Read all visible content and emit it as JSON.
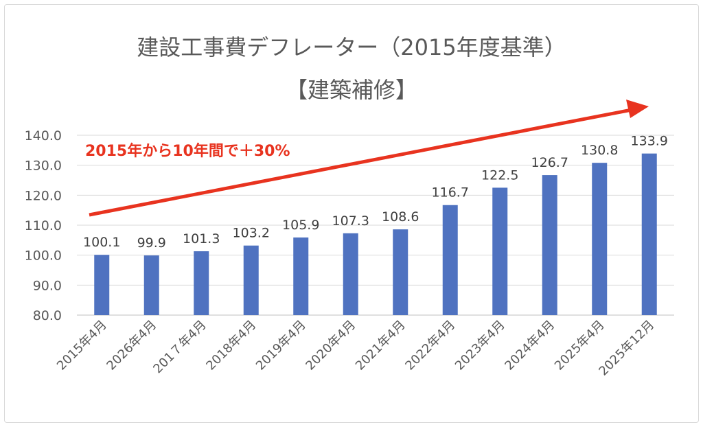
{
  "chart_data": {
    "type": "bar",
    "title": "建設工事費デフレーター（2015年度基準）",
    "subtitle": "【建築補修】",
    "categories": [
      "2015年4月",
      "2026年4月",
      "201７年4月",
      "2018年4月",
      "2019年4月",
      "2020年4月",
      "2021年4月",
      "2022年4月",
      "2023年4月",
      "2024年4月",
      "2025年4月",
      "2025年12月"
    ],
    "values": [
      100.1,
      99.9,
      101.3,
      103.2,
      105.9,
      107.3,
      108.6,
      116.7,
      122.5,
      126.7,
      130.8,
      133.9
    ],
    "data_labels": [
      "100.1",
      "99.9",
      "101.3",
      "103.2",
      "105.9",
      "107.3",
      "108.6",
      "116.7",
      "122.5",
      "126.7",
      "130.8",
      "133.9"
    ],
    "ylim": [
      80,
      140
    ],
    "yticks": [
      "80.0",
      "90.0",
      "100.0",
      "110.0",
      "120.0",
      "130.0",
      "140.0"
    ],
    "grid": true,
    "annotation": "2015年から10年間で＋30%",
    "bar_color": "#4f72c0",
    "annotation_color": "#e8331f"
  }
}
